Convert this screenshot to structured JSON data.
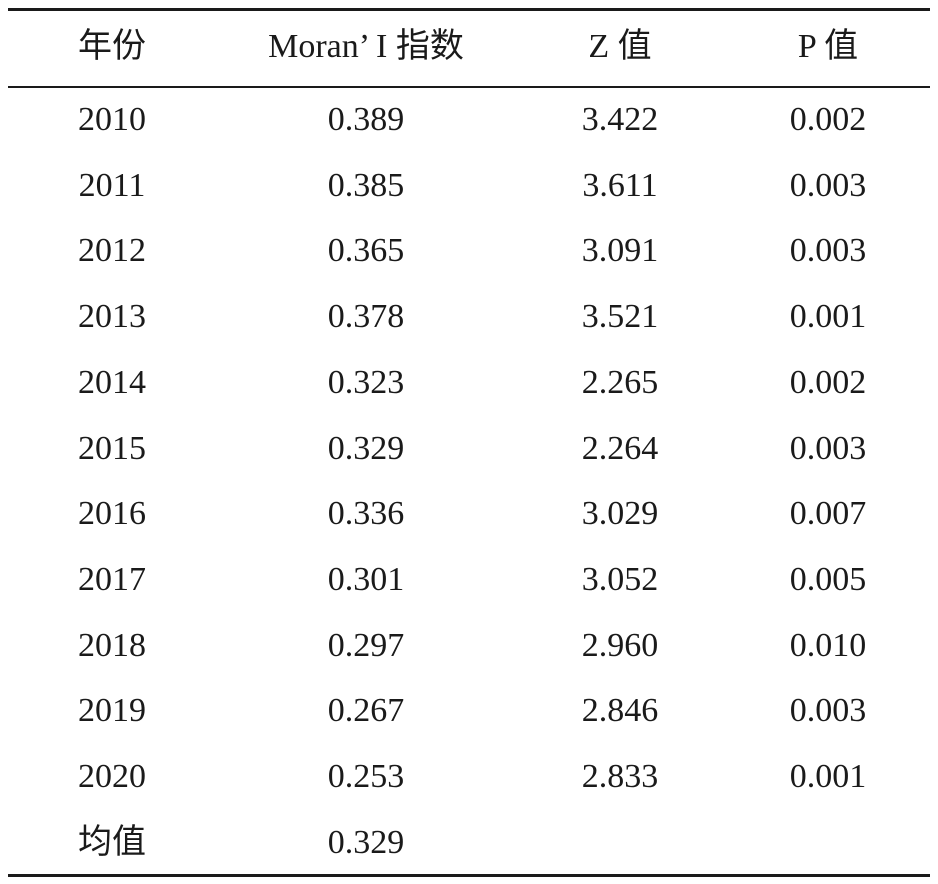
{
  "table": {
    "header": [
      "年份",
      "Moran’ I 指数",
      "Z 值",
      "P 值"
    ],
    "rows": [
      [
        "2010",
        "0.389",
        "3.422",
        "0.002"
      ],
      [
        "2011",
        "0.385",
        "3.611",
        "0.003"
      ],
      [
        "2012",
        "0.365",
        "3.091",
        "0.003"
      ],
      [
        "2013",
        "0.378",
        "3.521",
        "0.001"
      ],
      [
        "2014",
        "0.323",
        "2.265",
        "0.002"
      ],
      [
        "2015",
        "0.329",
        "2.264",
        "0.003"
      ],
      [
        "2016",
        "0.336",
        "3.029",
        "0.007"
      ],
      [
        "2017",
        "0.301",
        "3.052",
        "0.005"
      ],
      [
        "2018",
        "0.297",
        "2.960",
        "0.010"
      ],
      [
        "2019",
        "0.267",
        "2.846",
        "0.003"
      ],
      [
        "2020",
        "0.253",
        "2.833",
        "0.001"
      ],
      [
        "均值",
        "0.329"
      ]
    ]
  }
}
